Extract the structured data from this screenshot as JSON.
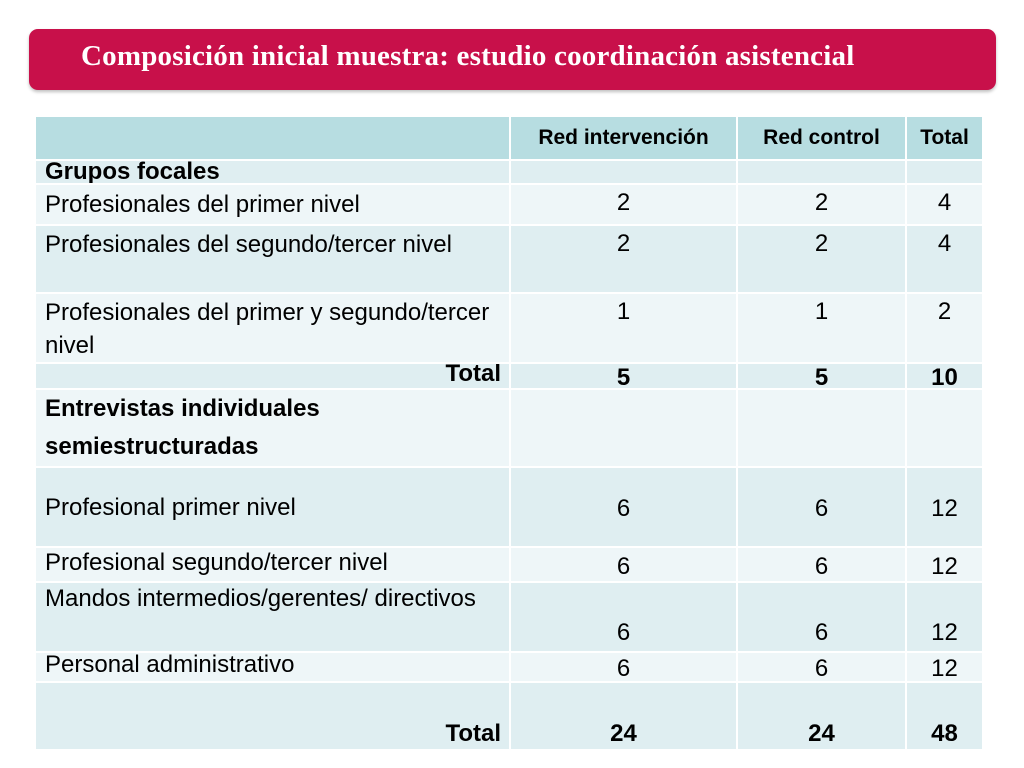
{
  "title": "Composición inicial muestra: estudio coordinación asistencial",
  "table": {
    "headers": [
      "",
      "Red intervención",
      "Red control",
      "Total"
    ],
    "section1": {
      "label": "Grupos focales",
      "rows": [
        {
          "label": "Profesionales del primer nivel",
          "values": [
            "2",
            "2",
            "4"
          ]
        },
        {
          "label": "Profesionales del segundo/tercer nivel",
          "values": [
            "2",
            "2",
            "4"
          ]
        },
        {
          "label": "Profesionales del primer y segundo/tercer nivel",
          "values": [
            "1",
            "1",
            "2"
          ]
        }
      ],
      "total": {
        "label": "Total",
        "values": [
          "5",
          "5",
          "10"
        ]
      }
    },
    "section2": {
      "label": "Entrevistas individuales semiestructuradas",
      "rows": [
        {
          "label": "Profesional primer nivel",
          "values": [
            "6",
            "6",
            "12"
          ]
        },
        {
          "label": "Profesional segundo/tercer nivel",
          "values": [
            "6",
            "6",
            "12"
          ]
        },
        {
          "label": "Mandos intermedios/gerentes/ directivos",
          "values": [
            "6",
            "6",
            "12"
          ]
        },
        {
          "label": "Personal administrativo",
          "values": [
            "6",
            "6",
            "12"
          ]
        }
      ],
      "total": {
        "label": "Total",
        "values": [
          "24",
          "24",
          "48"
        ]
      }
    }
  }
}
